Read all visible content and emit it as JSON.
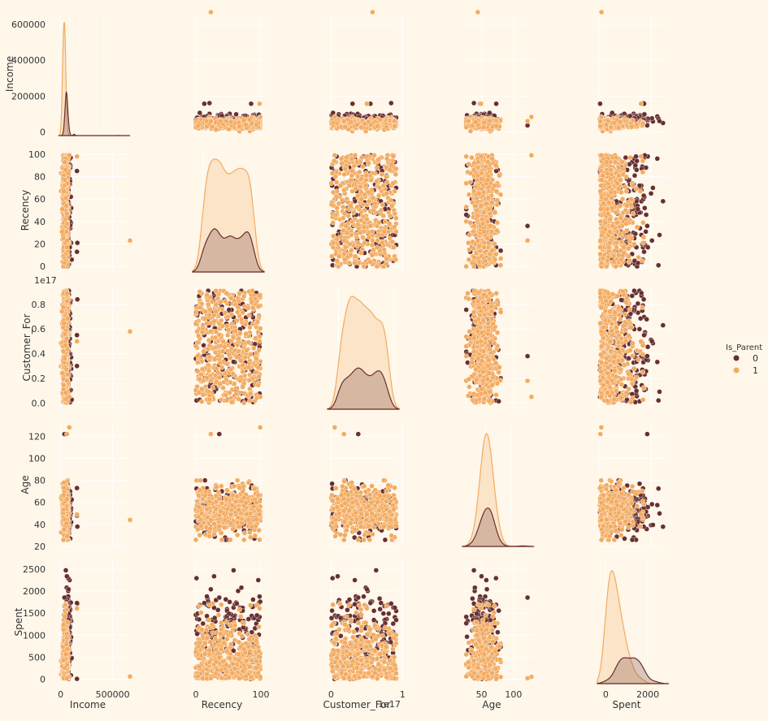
{
  "chart_data": {
    "type": "scatter",
    "variables": [
      "Income",
      "Recency",
      "Customer_For",
      "Age",
      "Spent"
    ],
    "hue": {
      "name": "Is_Parent",
      "levels": [
        "0",
        "1"
      ],
      "colors": [
        "#682f2f",
        "#f3ab60"
      ]
    },
    "axes": {
      "Income": {
        "label": "Income",
        "range": [
          -20000,
          666666
        ],
        "ticks": [
          0,
          200000,
          400000,
          600000
        ],
        "tick_labels": [
          "0",
          "200000",
          "400000",
          "600000"
        ],
        "x_ticks": [
          0,
          500000
        ],
        "x_tick_labels": [
          "0",
          "500000"
        ]
      },
      "Recency": {
        "label": "Recency",
        "range": [
          -5,
          105
        ],
        "ticks": [
          0,
          20,
          40,
          60,
          80,
          100
        ],
        "tick_labels": [
          "0",
          "20",
          "40",
          "60",
          "80",
          "100"
        ],
        "x_ticks": [
          0,
          100
        ],
        "x_tick_labels": [
          "0",
          "100"
        ]
      },
      "Customer_For": {
        "label": "Customer_For",
        "range": [
          -0.05,
          0.95
        ],
        "ticks": [
          0.0,
          0.2,
          0.4,
          0.6,
          0.8
        ],
        "tick_labels": [
          "0.0",
          "0.2",
          "0.4",
          "0.6",
          "0.8"
        ],
        "x_ticks": [
          0,
          1
        ],
        "x_tick_labels": [
          "0",
          "1"
        ],
        "offset_text": "1e17"
      },
      "Age": {
        "label": "Age",
        "range": [
          20,
          132
        ],
        "ticks": [
          20,
          40,
          60,
          80,
          100,
          120
        ],
        "tick_labels": [
          "20",
          "40",
          "60",
          "80",
          "100",
          "120"
        ],
        "x_ticks": [
          50,
          100
        ],
        "x_tick_labels": [
          "50",
          "100"
        ]
      },
      "Spent": {
        "label": "Spent",
        "range": [
          -100,
          2700
        ],
        "ticks": [
          0,
          500,
          1000,
          1500,
          2000,
          2500
        ],
        "tick_labels": [
          "0",
          "500",
          "1000",
          "1500",
          "2000",
          "2500"
        ],
        "x_ticks": [
          0,
          2000
        ],
        "x_tick_labels": [
          "0",
          "2000"
        ]
      }
    },
    "diagonal": "kde",
    "diagonal_x_ranges": {
      "Income": [
        -20000,
        800000
      ],
      "Recency": [
        -20,
        120
      ],
      "Customer_For": [
        -0.2,
        1.1
      ],
      "Age": [
        5,
        145
      ],
      "Spent": [
        -400,
        3000
      ]
    },
    "notable_points": [
      {
        "Income": 666666,
        "Recency": 23,
        "Customer_For": 0.58,
        "Age": 44,
        "Spent": 62,
        "Is_Parent": "1"
      },
      {
        "Income": 160803,
        "Recency": 21,
        "Customer_For": 0.84,
        "Age": 38,
        "Spent": 1717,
        "Is_Parent": "0"
      },
      {
        "Income": 157243,
        "Recency": 98,
        "Customer_For": 0.5,
        "Age": 49,
        "Spent": 1608,
        "Is_Parent": "1"
      },
      {
        "Income": 157146,
        "Recency": 13,
        "Customer_For": 0.55,
        "Age": 48,
        "Spent": 1730,
        "Is_Parent": "0"
      },
      {
        "Income": 156924,
        "Recency": 85,
        "Customer_For": 0.3,
        "Age": 73,
        "Spent": 8,
        "Is_Parent": "0"
      },
      {
        "Income": 83844,
        "Recency": 99,
        "Customer_For": 0.05,
        "Age": 128,
        "Spent": 55,
        "Is_Parent": "1"
      },
      {
        "Income": 60182,
        "Recency": 23,
        "Customer_For": 0.18,
        "Age": 122,
        "Spent": 22,
        "Is_Parent": "1"
      },
      {
        "Income": 36640,
        "Recency": 36,
        "Customer_For": 0.38,
        "Age": 122,
        "Spent": 1853,
        "Is_Parent": "0"
      }
    ]
  },
  "legend": {
    "title": "Is_Parent",
    "entries": [
      {
        "label": "0",
        "color": "#682f2f"
      },
      {
        "label": "1",
        "color": "#f3ab60"
      }
    ]
  }
}
